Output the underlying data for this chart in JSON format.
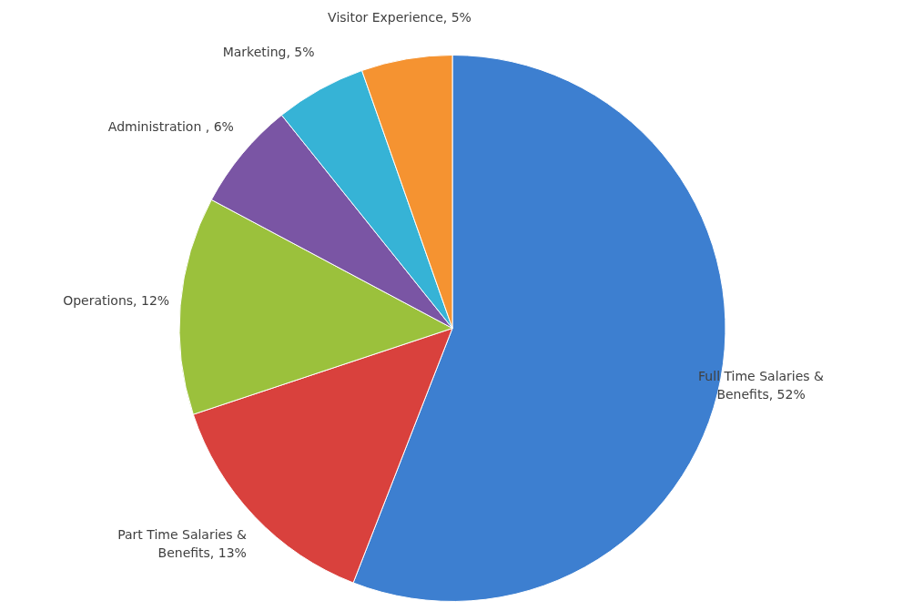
{
  "chart_data": {
    "type": "pie",
    "categories": [
      "Full Time Salaries & Benefits",
      "Part Time Salaries & Benefits",
      "Operations",
      "Administration ",
      "Marketing",
      "Visitor Experience"
    ],
    "values": [
      52,
      13,
      12,
      6,
      5,
      5
    ],
    "value_labels": [
      "52%",
      "13%",
      "12%",
      "6%",
      "5%",
      "5%"
    ],
    "colors": [
      "#3d7fd0",
      "#d9413d",
      "#9bc13c",
      "#7a55a4",
      "#36b3d6",
      "#f59331"
    ],
    "legend": false
  }
}
